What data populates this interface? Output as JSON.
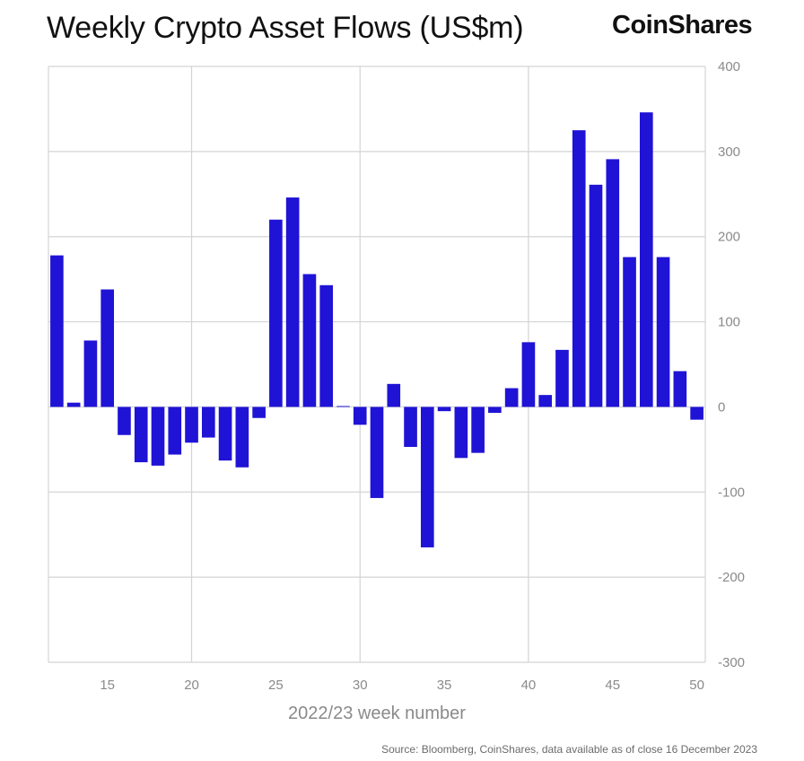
{
  "header": {
    "title": "Weekly Crypto Asset Flows (US$m)",
    "brand": "CoinShares"
  },
  "footer": {
    "source": "Source: Bloomberg, CoinShares, data available as of close 16 December 2023"
  },
  "colors": {
    "bar": "#1f13d6",
    "grid": "#d4d4d4",
    "tick_text": "#8a8a8a"
  },
  "chart_data": {
    "type": "bar",
    "title": "Weekly Crypto Asset Flows (US$m)",
    "xlabel": "2022/23 week number",
    "ylabel": "",
    "ylim": [
      -300,
      400
    ],
    "y_ticks": [
      400,
      300,
      200,
      100,
      0,
      -100,
      -200,
      -300
    ],
    "y_axis_position": "right",
    "x_ticks": [
      15,
      20,
      25,
      30,
      35,
      40,
      45,
      50
    ],
    "xlim": [
      11.5,
      50.5
    ],
    "grid": true,
    "categories": [
      12,
      13,
      14,
      15,
      16,
      17,
      18,
      19,
      20,
      21,
      22,
      23,
      24,
      25,
      26,
      27,
      28,
      29,
      30,
      31,
      32,
      33,
      34,
      35,
      36,
      37,
      38,
      39,
      40,
      41,
      42,
      43,
      44,
      45,
      46,
      47,
      48,
      49,
      50
    ],
    "series": [
      {
        "values": [
          178,
          5,
          78,
          138,
          -33,
          -65,
          -69,
          -56,
          -42,
          -36,
          -63,
          -71,
          -13,
          220,
          246,
          156,
          143,
          1,
          -21,
          -107,
          27,
          -47,
          -165,
          -5,
          -60,
          -54,
          -7,
          22,
          76,
          14,
          67,
          325,
          261,
          291,
          176,
          346,
          176,
          42,
          -15
        ]
      }
    ]
  }
}
